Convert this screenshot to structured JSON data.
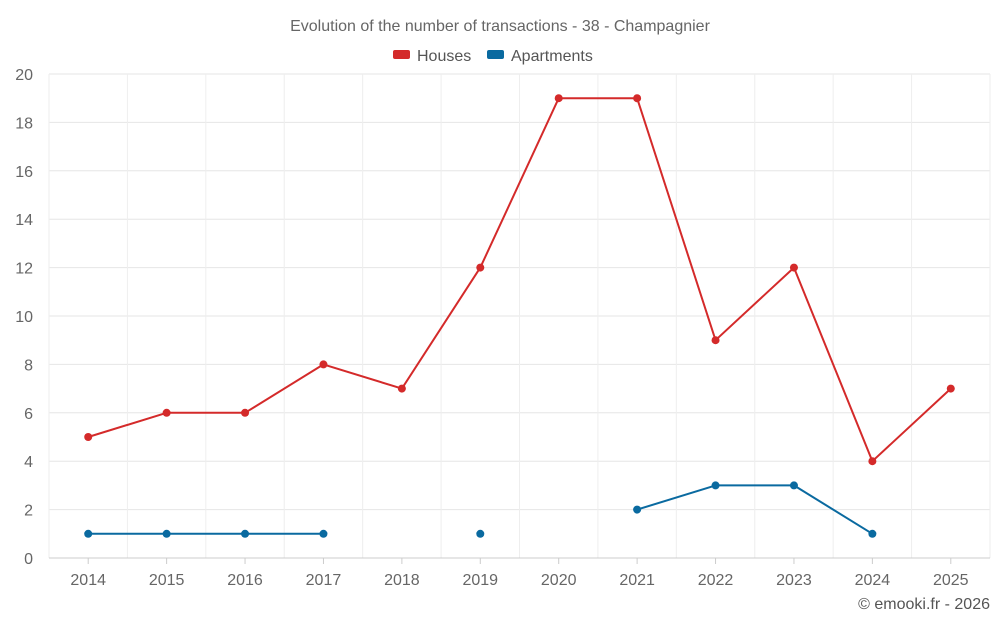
{
  "chart_data": {
    "type": "line",
    "title": "Evolution of the number of transactions - 38 - Champagnier",
    "categories": [
      "2014",
      "2015",
      "2016",
      "2017",
      "2018",
      "2019",
      "2020",
      "2021",
      "2022",
      "2023",
      "2024",
      "2025"
    ],
    "ylim": [
      0,
      20
    ],
    "yticks": [
      "0",
      "2",
      "4",
      "6",
      "8",
      "10",
      "12",
      "14",
      "16",
      "18",
      "20"
    ],
    "grid": true,
    "legend_position": "top-center",
    "series": [
      {
        "name": "Houses",
        "color": "#d42a2a",
        "values": [
          5,
          6,
          6,
          8,
          7,
          12,
          19,
          19,
          9,
          12,
          4,
          7
        ]
      },
      {
        "name": "Apartments",
        "color": "#0a6aa0",
        "values": [
          1,
          1,
          1,
          1,
          null,
          1,
          null,
          2,
          3,
          3,
          1,
          null
        ]
      }
    ]
  },
  "footer": {
    "credit": "© emooki.fr - 2026"
  }
}
